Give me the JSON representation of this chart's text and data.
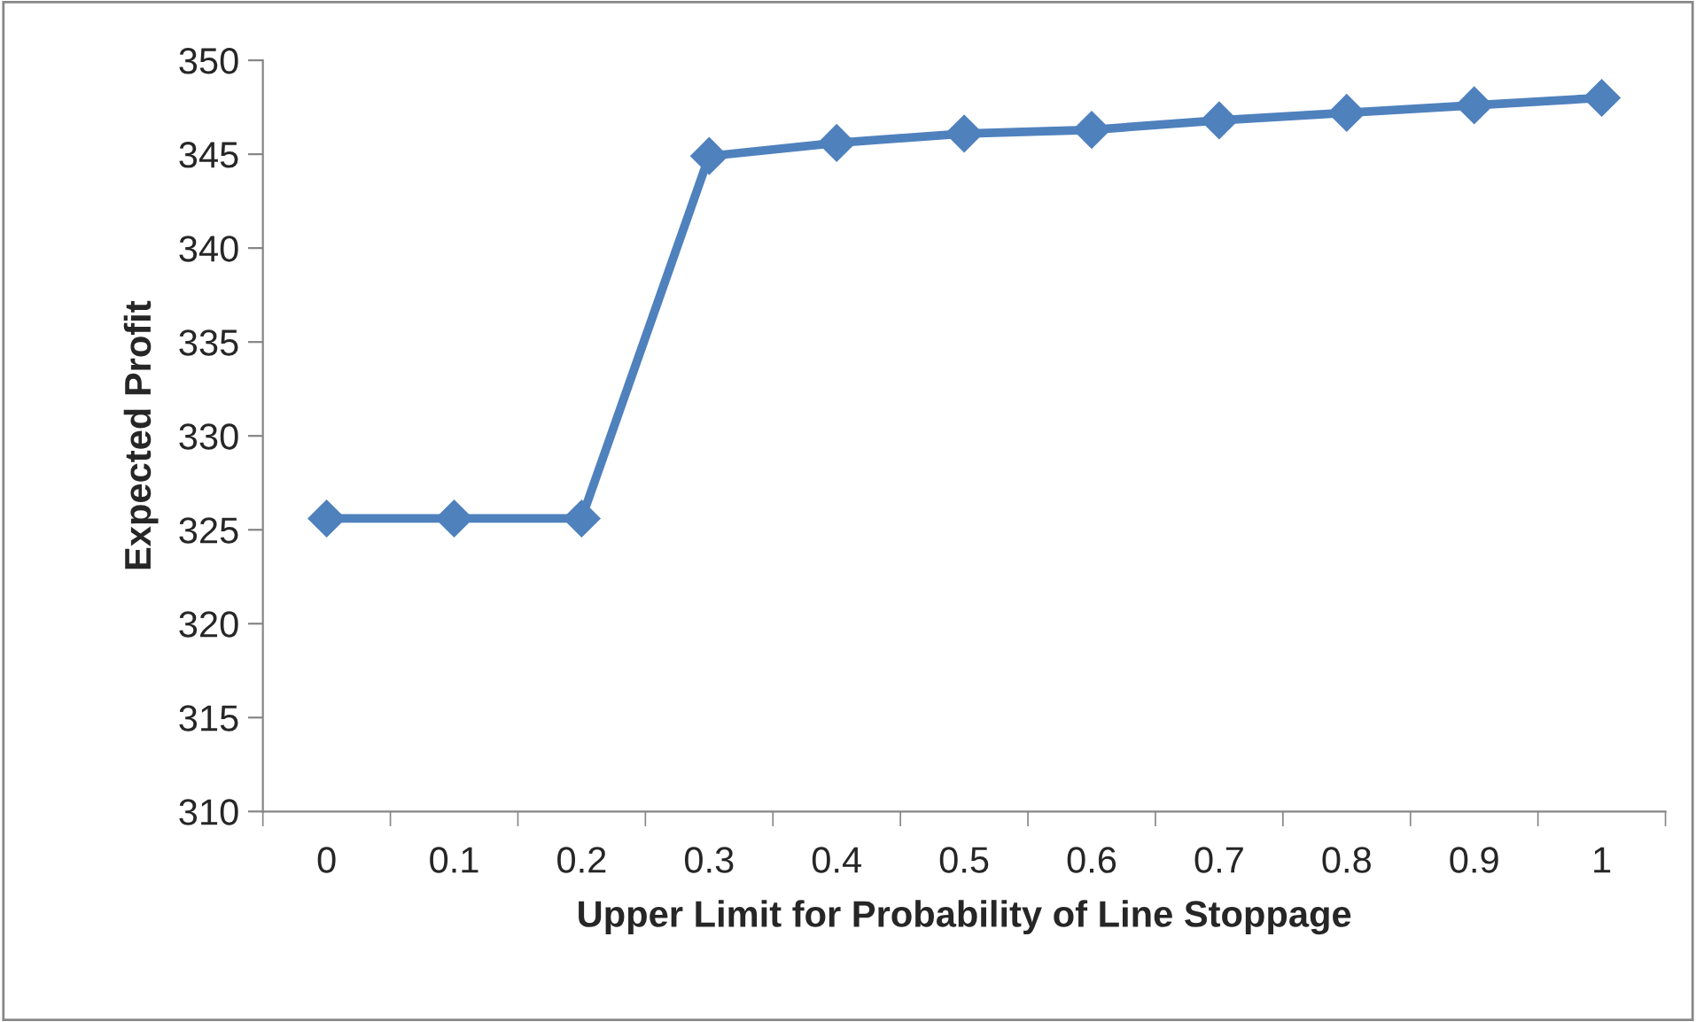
{
  "chart_data": {
    "type": "line",
    "xlabel": "Upper Limit for Probability of Line Stoppage",
    "ylabel": "Expected Profit",
    "categories": [
      "0",
      "0.1",
      "0.2",
      "0.3",
      "0.4",
      "0.5",
      "0.6",
      "0.7",
      "0.8",
      "0.9",
      "1"
    ],
    "series": [
      {
        "color": "#4f81bd",
        "values": [
          325.6,
          325.6,
          325.6,
          344.9,
          345.6,
          346.1,
          346.3,
          346.8,
          347.2,
          347.6,
          348.0
        ]
      }
    ],
    "ylim": [
      310,
      350
    ],
    "yticks": [
      310,
      315,
      320,
      325,
      330,
      335,
      340,
      345,
      350
    ],
    "grid": false,
    "legend": false,
    "marker": "diamond",
    "line_style": "solid"
  }
}
